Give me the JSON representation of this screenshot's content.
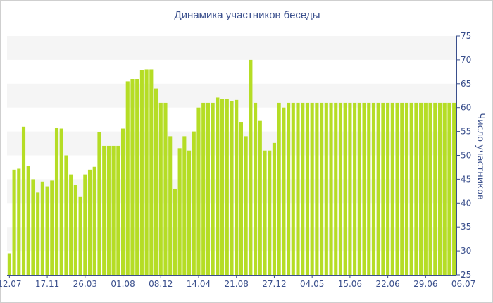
{
  "chart_data": {
    "type": "bar",
    "title": "Динамика участников беседы",
    "xlabel": "",
    "ylabel": "Число участников",
    "ylim": [
      25,
      75
    ],
    "yticks": [
      25,
      30,
      35,
      40,
      45,
      50,
      55,
      60,
      65,
      70,
      75
    ],
    "xtick_labels": [
      "12.07",
      "17.11",
      "26.03",
      "01.08",
      "08.12",
      "14.04",
      "21.08",
      "27.12",
      "04.05",
      "15.06",
      "22.06",
      "29.06",
      "06.07"
    ],
    "xtick_index": [
      0,
      8,
      16,
      24,
      32,
      40,
      48,
      56,
      64,
      72,
      80,
      88,
      96
    ],
    "grid": "alternating horizontal bands",
    "bar_color": "#b5dd25",
    "band_color": "#f5f5f5",
    "values": [
      29.5,
      47,
      47.2,
      56,
      47.8,
      45,
      42.2,
      44.5,
      43.5,
      44.7,
      55.8,
      55.6,
      50,
      46,
      43.8,
      41.4,
      46,
      47,
      47.6,
      54.8,
      52,
      52,
      52,
      52,
      55.6,
      65.5,
      66,
      66,
      67.8,
      68,
      68,
      64,
      61,
      61,
      54,
      43,
      51.5,
      54,
      51,
      55,
      60,
      61,
      61,
      61,
      62.1,
      61.8,
      61.8,
      61.3,
      61.6,
      57,
      54,
      70,
      61,
      57.2,
      51,
      51,
      52.6,
      61,
      60,
      61,
      61,
      61,
      61,
      61,
      61,
      61,
      61,
      61,
      61,
      61,
      61,
      61,
      61,
      61,
      61,
      61,
      61,
      61,
      61,
      61,
      61,
      61,
      61,
      61,
      61,
      61,
      61,
      61,
      61,
      61,
      61,
      61,
      61,
      61,
      61
    ]
  }
}
